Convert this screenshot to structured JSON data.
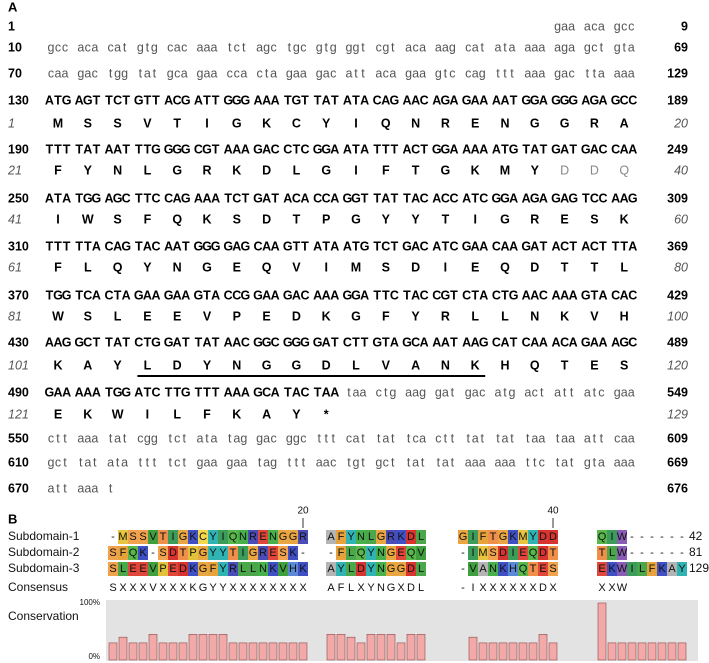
{
  "panel_a": {
    "label": "A",
    "rows": [
      {
        "kind": "nucleotide",
        "start": 1,
        "segments": [
          {
            "text": "gaa aca gcc",
            "style": "plain"
          }
        ],
        "end": 9
      },
      {
        "kind": "nucleotide",
        "start": 10,
        "segments": [
          {
            "text": "gcc aca cat gtg cac aaa tct agc tgc gtg ggt cgt aca aag cat ata aaa aga gct gta",
            "style": "plain"
          }
        ],
        "end": 69
      },
      {
        "kind": "nucleotide",
        "start": 70,
        "segments": [
          {
            "text": "caa gac tgg tat gca gaa cca cta gaa gac att aca gaa gtc cag ttt aaa gac tta aaa",
            "style": "plain"
          }
        ],
        "end": 129
      },
      {
        "kind": "nucleotide",
        "start": 130,
        "segments": [
          {
            "text": "ATG AGT TCT GTT ACG ATT GGG AAA TGT TAT ATA CAG AAC AGA GAA AAT GGA GGG AGA GCC",
            "style": "bold"
          }
        ],
        "end": 189
      },
      {
        "kind": "protein",
        "start": 1,
        "segments": [
          {
            "text": "M S S V T I G K C Y I Q N R E N G G R A",
            "style": "bold"
          }
        ],
        "end": 20
      },
      {
        "kind": "nucleotide",
        "start": 190,
        "segments": [
          {
            "text": "TTT TAT AAT TTG GGG CGT AAA GAC CTC GGA ATA TTT ACT GGA AAA ATG TAT GAT GAC CAA",
            "style": "bold"
          }
        ],
        "end": 249
      },
      {
        "kind": "protein",
        "start": 21,
        "segments": [
          {
            "text": "F Y N L G R K D L G I F T G K M Y",
            "style": "bold"
          },
          {
            "text": "D D Q",
            "style": "faint"
          }
        ],
        "end": 40
      },
      {
        "kind": "nucleotide",
        "start": 250,
        "segments": [
          {
            "text": "ATA TGG AGC TTC CAG AAA TCT GAT ACA CCA GGT TAT TAC ACC ATC GGA AGA GAG TCC AAG",
            "style": "bold"
          }
        ],
        "end": 309
      },
      {
        "kind": "protein",
        "start": 41,
        "segments": [
          {
            "text": "I W S F Q K S D T P G Y Y T I G R E S K",
            "style": "bold"
          }
        ],
        "end": 60
      },
      {
        "kind": "nucleotide",
        "start": 310,
        "segments": [
          {
            "text": "TTT TTA CAG TAC AAT GGG GAG CAA GTT ATA ATG TCT GAC ATC GAA CAA GAT ACT ACT TTA",
            "style": "bold"
          }
        ],
        "end": 369
      },
      {
        "kind": "protein",
        "start": 61,
        "segments": [
          {
            "text": "F L Q Y N G E Q V I M S D I E Q D T T L",
            "style": "bold"
          }
        ],
        "end": 80
      },
      {
        "kind": "nucleotide",
        "start": 370,
        "segments": [
          {
            "text": "TGG TCA CTA GAA GAA GTA CCG GAA GAC AAA GGA TTC TAC CGT CTA CTG AAC AAA GTA CAC",
            "style": "bold"
          }
        ],
        "end": 429
      },
      {
        "kind": "protein",
        "start": 81,
        "segments": [
          {
            "text": "W S L E E V P E D K G F Y R L L N K V H",
            "style": "bold"
          }
        ],
        "end": 100
      },
      {
        "kind": "nucleotide",
        "start": 430,
        "segments": [
          {
            "text": "AAG GCT TAT CTG GAT TAT AAC GGC GGG GAT CTT GTA GCA AAT AAG CAT CAA ACA GAA AGC",
            "style": "bold"
          }
        ],
        "end": 489
      },
      {
        "kind": "protein",
        "start": 101,
        "segments": [
          {
            "text": "K A Y",
            "style": "bold"
          },
          {
            "text": "L D Y N G G D L V A N K",
            "style": "underline"
          },
          {
            "text": "H Q T E S",
            "style": "bold"
          }
        ],
        "end": 120
      },
      {
        "kind": "nucleotide",
        "start": 490,
        "segments": [
          {
            "text": "GAA AAA TGG ATC TTG TTT AAA GCA TAC TAA",
            "style": "bold"
          },
          {
            "text": "taa ctg aag gat gac atg act att atc gaa",
            "style": "plain"
          }
        ],
        "end": 549
      },
      {
        "kind": "protein",
        "start": 121,
        "segments": [
          {
            "text": "E K W I L F K A Y *",
            "style": "bold"
          }
        ],
        "end": 129
      },
      {
        "kind": "nucleotide",
        "start": 550,
        "segments": [
          {
            "text": "ctt aaa tat cgg tct ata tag gac ggc ttt cat tat tca ctt tat tat taa taa att caa",
            "style": "plain"
          }
        ],
        "end": 609
      },
      {
        "kind": "nucleotide",
        "start": 610,
        "segments": [
          {
            "text": "gct tat ata ttt tct gaa gaa tag ttt aac tgt gct tat tat aaa aaa ttc tat gta aaa",
            "style": "plain"
          }
        ],
        "end": 669
      },
      {
        "kind": "nucleotide",
        "start": 670,
        "segments": [
          {
            "text": "att aaa t",
            "style": "plain"
          }
        ],
        "end": 676
      }
    ]
  },
  "panel_b": {
    "label": "B",
    "column_ticks": [
      20,
      40
    ],
    "sequences": [
      {
        "name": "Subdomain-1",
        "blocks": [
          "-MSSVTIGKC",
          "YIQNRENGGR",
          "AFYNLGRKDL",
          "GIFTGKMYDD",
          "QIW------"
        ],
        "end": 42
      },
      {
        "name": "Subdomain-2",
        "blocks": [
          "SFQK-SDTPG",
          "YYTIGRESK-",
          "-FLQYNGEQV",
          "-IMSDIEQDT",
          "TLW------"
        ],
        "end": 81
      },
      {
        "name": "Subdomain-3",
        "blocks": [
          "SLEEVPEDKG",
          "FYRLLNKVHK",
          "AYLDYNGGDL",
          "-VANKHQTES",
          "EKWILFKAY"
        ],
        "end": 129
      }
    ],
    "consensus": {
      "name": "Consensus",
      "blocks": [
        "SXXXVXXXKG",
        "YYXXXXXXXX",
        "AFLXYNGXDL",
        "-IXXXXXXDX",
        "XXW"
      ]
    },
    "conservation": {
      "name": "Conservation",
      "color": "#f4a9a9",
      "ylim": [
        0,
        100
      ],
      "yticks": [
        {
          "value": 0,
          "label": "0%"
        },
        {
          "value": 100,
          "label": "100%"
        }
      ],
      "values": [
        30,
        40,
        30,
        30,
        45,
        30,
        30,
        30,
        45,
        45,
        45,
        45,
        30,
        30,
        30,
        30,
        30,
        30,
        30,
        30,
        45,
        45,
        40,
        30,
        45,
        45,
        45,
        30,
        45,
        45,
        0,
        40,
        30,
        30,
        30,
        30,
        30,
        30,
        45,
        30,
        100,
        30,
        30,
        30,
        30,
        30,
        30,
        30,
        30
      ]
    },
    "residue_colors": {
      "A": "#b4b4b4",
      "V": "#3f9f3f",
      "L": "#4aa84a",
      "I": "#3c9c5a",
      "M": "#e8c440",
      "F": "#e8a23c",
      "Y": "#2fb3b3",
      "W": "#8a5cb8",
      "C": "#f2d84a",
      "G": "#e9a640",
      "P": "#e2c23a",
      "S": "#f0a24c",
      "T": "#ef8f4a",
      "N": "#46b04a",
      "Q": "#59b84c",
      "D": "#d8342f",
      "E": "#e0463a",
      "K": "#3f4fc4",
      "R": "#4a4cb8",
      "H": "#5a8ad6"
    }
  }
}
